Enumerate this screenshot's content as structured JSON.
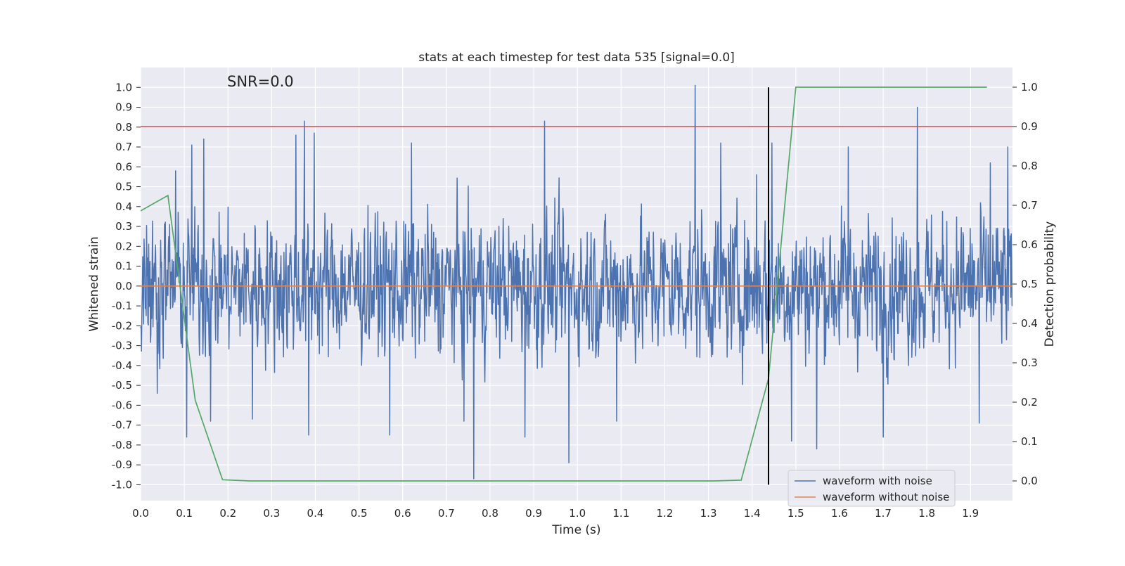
{
  "chart_data": {
    "type": "line",
    "title": "stats at each timestep for test data 535 [signal=0.0]",
    "annotation": "SNR=0.0",
    "xlabel": "Time (s)",
    "ylabel": "Whitened strain",
    "ylabel_right": "Detection probability",
    "xlim": [
      0.0,
      1.9961
    ],
    "ylim": [
      -1.08,
      1.1
    ],
    "ylim_right": [
      -0.05,
      1.05
    ],
    "grid": true,
    "legend_placement": "lower right",
    "x_ticks": [
      "0.0",
      "0.1",
      "0.2",
      "0.3",
      "0.4",
      "0.5",
      "0.6",
      "0.7",
      "0.8",
      "0.9",
      "1.0",
      "1.1",
      "1.2",
      "1.3",
      "1.4",
      "1.5",
      "1.6",
      "1.7",
      "1.8",
      "1.9"
    ],
    "y_ticks": [
      "1.0",
      "0.9",
      "0.8",
      "0.7",
      "0.6",
      "0.5",
      "0.4",
      "0.3",
      "0.2",
      "0.1",
      "0.0",
      "-0.1",
      "-0.2",
      "-0.3",
      "-0.4",
      "-0.5",
      "-0.6",
      "-0.7",
      "-0.8",
      "-0.9",
      "-1.0"
    ],
    "y_ticks_right": [
      "1.0",
      "0.9",
      "0.8",
      "0.7",
      "0.6",
      "0.5",
      "0.4",
      "0.3",
      "0.2",
      "0.1",
      "0.0"
    ],
    "series": [
      {
        "name": "waveform with noise",
        "color": "#4c72b0",
        "axis": "left",
        "sampling_rate_hz": 1024,
        "amplitude_envelope": 0.45,
        "peaks": [
          {
            "x": 0.038,
            "y": -0.54
          },
          {
            "x": 0.08,
            "y": 0.58
          },
          {
            "x": 0.105,
            "y": -0.76
          },
          {
            "x": 0.117,
            "y": 0.71
          },
          {
            "x": 0.145,
            "y": 0.74
          },
          {
            "x": 0.16,
            "y": -0.68
          },
          {
            "x": 0.256,
            "y": -0.67
          },
          {
            "x": 0.355,
            "y": 0.76
          },
          {
            "x": 0.375,
            "y": 0.83
          },
          {
            "x": 0.385,
            "y": -0.75
          },
          {
            "x": 0.397,
            "y": 0.77
          },
          {
            "x": 0.57,
            "y": -0.75
          },
          {
            "x": 0.62,
            "y": 0.72
          },
          {
            "x": 0.74,
            "y": -0.68
          },
          {
            "x": 0.763,
            "y": -0.97
          },
          {
            "x": 0.88,
            "y": -0.76
          },
          {
            "x": 0.925,
            "y": 0.83
          },
          {
            "x": 0.98,
            "y": -0.89
          },
          {
            "x": 1.09,
            "y": -0.68
          },
          {
            "x": 1.27,
            "y": 1.01
          },
          {
            "x": 1.328,
            "y": 0.72
          },
          {
            "x": 1.41,
            "y": 0.56
          },
          {
            "x": 1.445,
            "y": 0.72
          },
          {
            "x": 1.49,
            "y": -0.78
          },
          {
            "x": 1.548,
            "y": -0.82
          },
          {
            "x": 1.62,
            "y": 0.7
          },
          {
            "x": 1.7,
            "y": -0.76
          },
          {
            "x": 1.778,
            "y": 0.9
          },
          {
            "x": 1.92,
            "y": -0.69
          },
          {
            "x": 1.945,
            "y": 0.62
          },
          {
            "x": 1.985,
            "y": 0.7
          }
        ]
      },
      {
        "name": "waveform without noise",
        "color": "#dd8452",
        "axis": "left",
        "x": [
          0.0,
          1.9961
        ],
        "y": [
          0.0,
          0.0
        ]
      },
      {
        "color": "#55a868",
        "axis": "right",
        "x": [
          0.0,
          0.0625,
          0.125,
          0.1875,
          0.25,
          0.3125,
          0.375,
          0.4375,
          0.5,
          0.5625,
          0.625,
          0.6875,
          0.75,
          0.8125,
          0.875,
          0.9375,
          1.0,
          1.0625,
          1.125,
          1.1875,
          1.25,
          1.3125,
          1.375,
          1.4375,
          1.5,
          1.5625,
          1.625,
          1.6875,
          1.75,
          1.8125,
          1.875,
          1.9375
        ],
        "y": [
          0.686,
          0.725,
          0.205,
          0.003,
          0.0,
          0.0,
          0.0,
          0.0,
          0.0,
          0.0,
          0.0,
          0.0,
          0.0,
          0.0,
          0.0,
          0.0,
          0.0,
          0.0,
          0.0,
          0.0,
          0.0,
          0.0,
          0.002,
          0.26,
          1.0,
          1.0,
          1.0,
          1.0,
          1.0,
          1.0,
          1.0,
          1.0
        ]
      }
    ],
    "reference_lines": [
      {
        "orientation": "horizontal",
        "axis": "right",
        "value": 0.9,
        "color": "#c44e52"
      },
      {
        "orientation": "vertical",
        "value": 1.4375,
        "color": "#000000",
        "y_range": [
          -1.0,
          1.0
        ]
      }
    ]
  },
  "colors": {
    "plot_background": "#eaeaf2",
    "grid": "#ffffff"
  }
}
